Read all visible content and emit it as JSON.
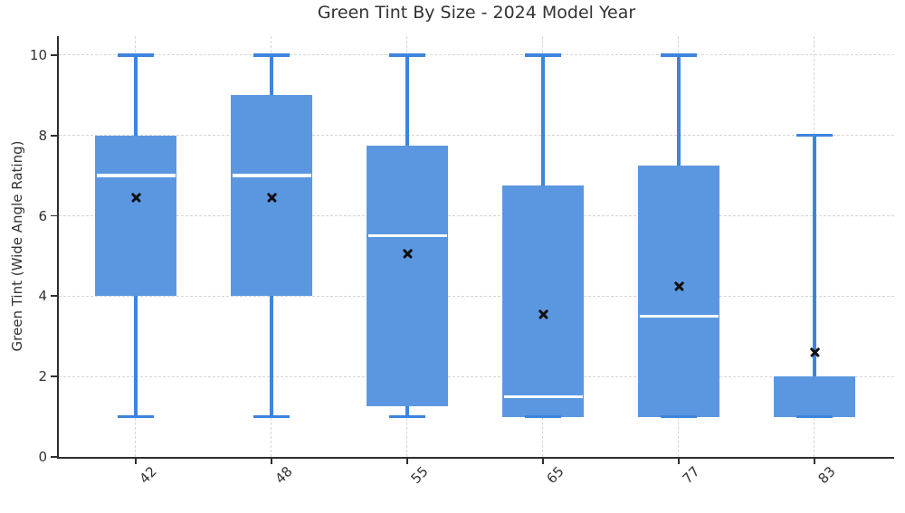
{
  "chart_data": {
    "type": "boxplot",
    "title": "Green Tint By Size - 2024 Model Year",
    "xlabel": "",
    "ylabel": "Green Tint (Wide Angle Rating)",
    "categories": [
      "42",
      "48",
      "55",
      "65",
      "77",
      "83"
    ],
    "yticks": [
      0,
      2,
      4,
      6,
      8,
      10
    ],
    "ylim": [
      0,
      10.47
    ],
    "grid": {
      "horizontal": true,
      "vertical": true,
      "linestyle": "dashed"
    },
    "legend": "none",
    "mean_marker": "x",
    "boxes": [
      {
        "category": "42",
        "min": 1.0,
        "q1": 4.0,
        "median": 7.0,
        "q3": 8.0,
        "max": 10.0,
        "mean": 6.45
      },
      {
        "category": "48",
        "min": 1.0,
        "q1": 4.0,
        "median": 7.0,
        "q3": 9.0,
        "max": 10.0,
        "mean": 6.45
      },
      {
        "category": "55",
        "min": 1.0,
        "q1": 1.25,
        "median": 5.5,
        "q3": 7.75,
        "max": 10.0,
        "mean": 5.05
      },
      {
        "category": "65",
        "min": 1.0,
        "q1": 1.0,
        "median": 1.5,
        "q3": 6.75,
        "max": 10.0,
        "mean": 3.55
      },
      {
        "category": "77",
        "min": 1.0,
        "q1": 1.0,
        "median": 3.5,
        "q3": 7.25,
        "max": 10.0,
        "mean": 4.25
      },
      {
        "category": "83",
        "min": 1.0,
        "q1": 1.0,
        "median": 1.0,
        "q3": 2.0,
        "max": 8.0,
        "mean": 2.6
      }
    ],
    "colors": {
      "box_fill": "#5b97e0",
      "whisker": "#3d84de",
      "median_line": "#ffffff",
      "mean_marker": "#111111",
      "gridline": "#d5d5d5",
      "axis": "#2e2e2e",
      "text": "#333333"
    }
  }
}
